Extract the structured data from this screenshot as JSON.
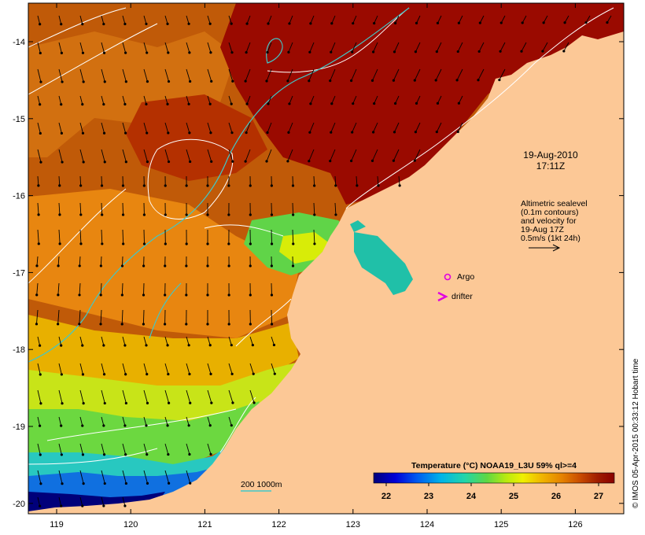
{
  "map": {
    "lon_ticks": [
      "119",
      "120",
      "121",
      "122",
      "123",
      "124",
      "125",
      "126"
    ],
    "lat_ticks": [
      "-14",
      "-15",
      "-16",
      "-17",
      "-18",
      "-19",
      "-20"
    ]
  },
  "annotations": {
    "date": "19-Aug-2010",
    "time": "17:11Z",
    "altimetry": [
      "Altimetric sealevel",
      "(0.1m contours)",
      "and velocity for",
      "19-Aug 17Z",
      "0.5m/s (1kt 24h)"
    ],
    "argo_label": "Argo",
    "drifter_label": "drifter",
    "isobath_label": "200  1000m"
  },
  "colorbar": {
    "title": "Temperature (°C) NOAA19_L3U 59% ql>=4",
    "ticks": [
      "22",
      "23",
      "24",
      "25",
      "26",
      "27"
    ],
    "colors": [
      "#00007a",
      "#0000d8",
      "#005af0",
      "#00b4e8",
      "#22d6a8",
      "#5ed844",
      "#b8ea10",
      "#f0f000",
      "#f0b400",
      "#e68400",
      "#c84a00",
      "#a01e00",
      "#8a0000"
    ]
  },
  "credit": "© IMOS 05-Apr-2015 00:33:12 Hobart time",
  "colors": {
    "land": "#fcc896",
    "warm_water": "#b03c00",
    "hot_water": "#9a0a00",
    "cool_water": "#00c8a0",
    "current_arrow": "#000000",
    "sealevel_contour": "#ffffff",
    "isobath_contour": "#40c8c8",
    "argo_marker": "#e000e0"
  }
}
